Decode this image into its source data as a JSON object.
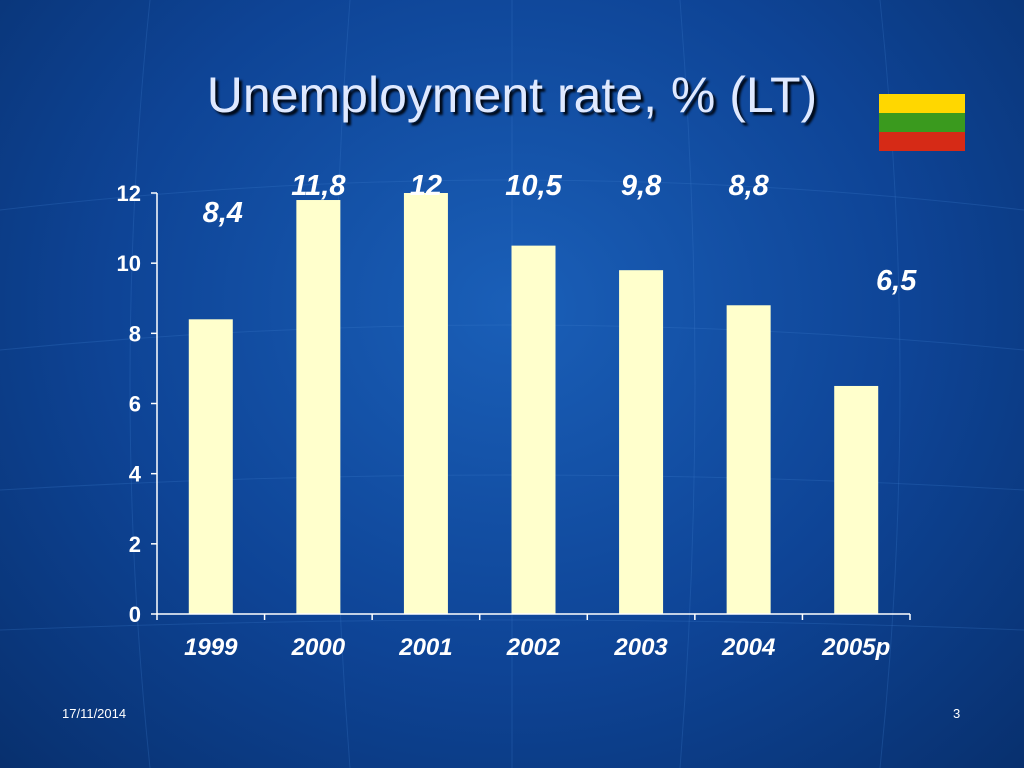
{
  "slide": {
    "title": "Unemployment rate, % (LT)",
    "footer_date": "17/11/2014",
    "page_number": "3"
  },
  "flag": {
    "stripes": [
      "#FFD700",
      "#3A9A1E",
      "#D62A16"
    ]
  },
  "colors": {
    "bar": "#FFFFCC",
    "axis": "#FFFFFF",
    "text": "#FFFFFF",
    "background": "#0E4496"
  },
  "chart_data": {
    "type": "bar",
    "categories": [
      "1999",
      "2000",
      "2001",
      "2002",
      "2003",
      "2004",
      "2005p"
    ],
    "values": [
      8.4,
      11.8,
      12,
      10.5,
      9.8,
      8.8,
      6.5
    ],
    "data_labels": [
      "8,4",
      "11,8",
      "12",
      "10,5",
      "9,8",
      "8,8",
      "6,5"
    ],
    "yticks": [
      0,
      2,
      4,
      6,
      8,
      10,
      12
    ],
    "ylim": [
      0,
      12
    ],
    "title": "Unemployment rate, % (LT)",
    "xlabel": "",
    "ylabel": "",
    "grid": false,
    "legend": "none"
  }
}
